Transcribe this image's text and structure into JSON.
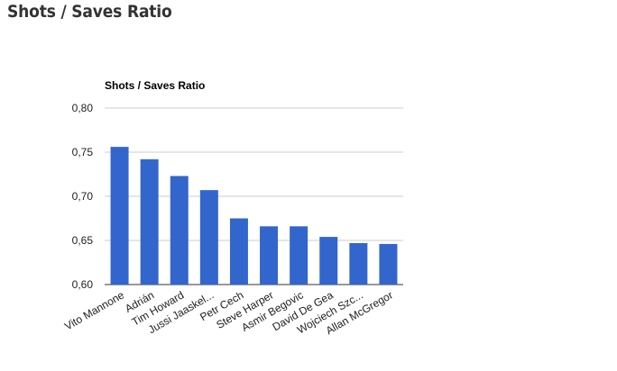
{
  "page": {
    "heading": "Shots / Saves Ratio"
  },
  "colors": {
    "bar": "#3366cc",
    "grid": "#cccccc",
    "axis": "#333333"
  },
  "chart_data": {
    "type": "bar",
    "title": "Shots / Saves Ratio",
    "xlabel": "",
    "ylabel": "",
    "categories": [
      "Vito Mannone",
      "Adrián",
      "Tim Howard",
      "Jussi Jaaskel...",
      "Petr Cech",
      "Steve Harper",
      "Asmir Begovic",
      "David De Gea",
      "Wojciech Szc...",
      "Allan McGregor"
    ],
    "values": [
      0.756,
      0.742,
      0.723,
      0.707,
      0.675,
      0.666,
      0.666,
      0.654,
      0.647,
      0.646
    ],
    "ylim": [
      0.6,
      0.8
    ],
    "yticks": [
      "0,60",
      "0,65",
      "0,70",
      "0,75",
      "0,80"
    ],
    "grid": true,
    "legend": "none"
  }
}
